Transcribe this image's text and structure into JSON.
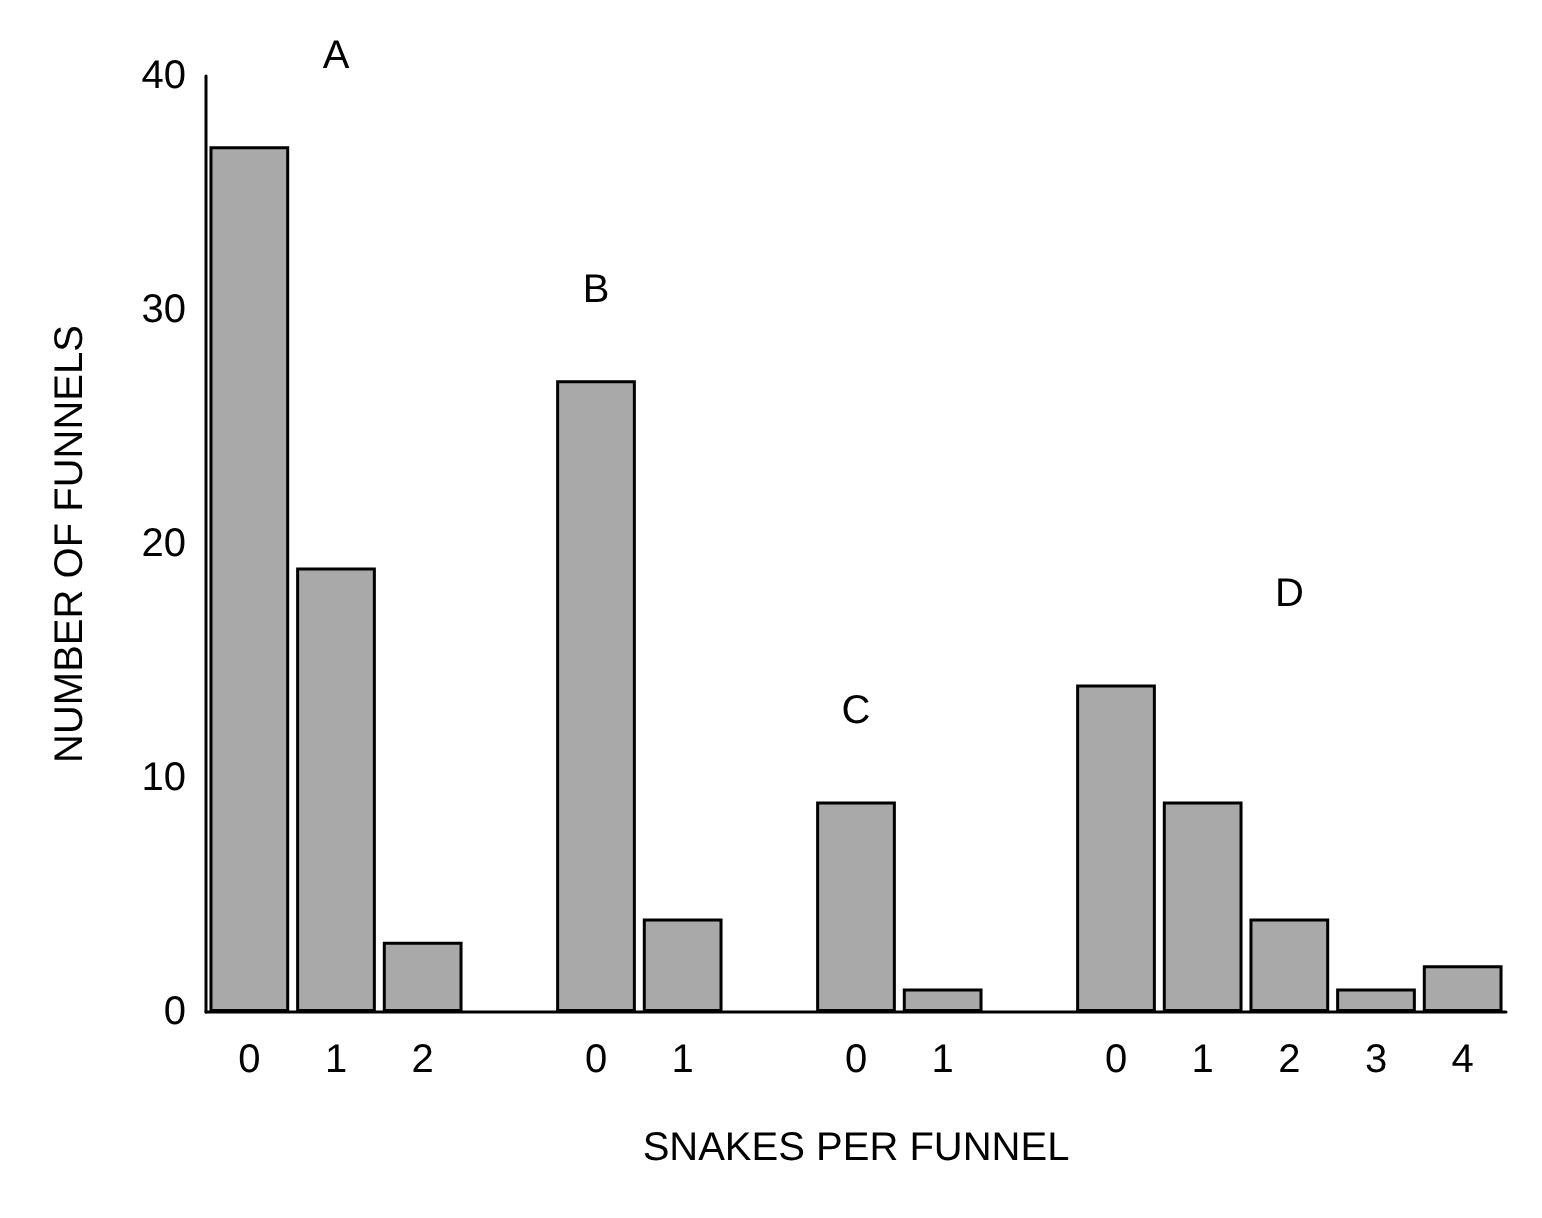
{
  "chart_data": {
    "type": "bar",
    "xlabel": "SNAKES PER FUNNEL",
    "ylabel": "NUMBER OF FUNNELS",
    "categories": [
      "0",
      "1",
      "2",
      null,
      "0",
      "1",
      null,
      "0",
      "1",
      null,
      "0",
      "1",
      "2",
      "3",
      "4"
    ],
    "values": [
      37,
      19,
      3,
      null,
      27,
      4,
      null,
      9,
      1,
      null,
      14,
      9,
      4,
      1,
      2
    ],
    "color": "#a9a9a9",
    "ylim": [
      0,
      40
    ],
    "yticks": [
      0,
      10,
      20,
      30,
      40
    ],
    "grid": false,
    "annotations": [
      "A",
      "B",
      "C",
      "D"
    ]
  }
}
